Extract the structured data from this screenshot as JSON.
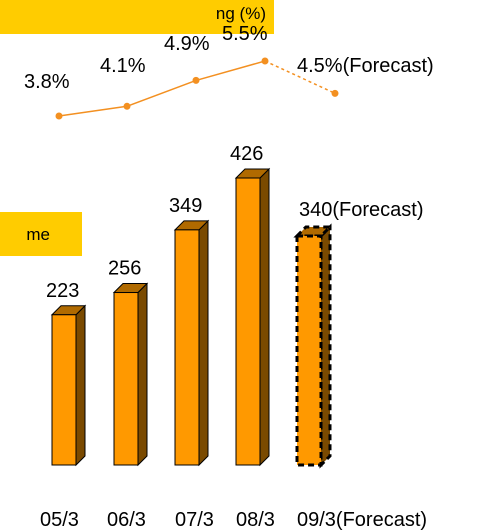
{
  "legends": {
    "top": "ng (%)",
    "bottom": "me"
  },
  "colors": {
    "bar_front": "#ff9900",
    "bar_side": "#7a4a00",
    "bar_top": "#b06a00",
    "line": "#f39021",
    "legend_bg": "#ffcc00"
  },
  "chart_data": [
    {
      "type": "line",
      "categories": [
        "05/3",
        "06/3",
        "07/3",
        "08/3",
        "09/3(Forecast)"
      ],
      "values": [
        3.8,
        4.1,
        4.9,
        5.5,
        4.5
      ],
      "data_labels": [
        "3.8%",
        "4.1%",
        "4.9%",
        "5.5%",
        "4.5%(Forecast)"
      ],
      "forecast_index": 4,
      "ylim": [
        3.0,
        6.0
      ],
      "grid": false
    },
    {
      "type": "bar",
      "categories": [
        "05/3",
        "06/3",
        "07/3",
        "08/3",
        "09/3(Forecast)"
      ],
      "values": [
        223,
        256,
        349,
        426,
        340
      ],
      "data_labels": [
        "223",
        "256",
        "349",
        "426",
        "340(Forecast)"
      ],
      "forecast_index": 4,
      "ylim": [
        0,
        440
      ],
      "grid": false
    }
  ]
}
